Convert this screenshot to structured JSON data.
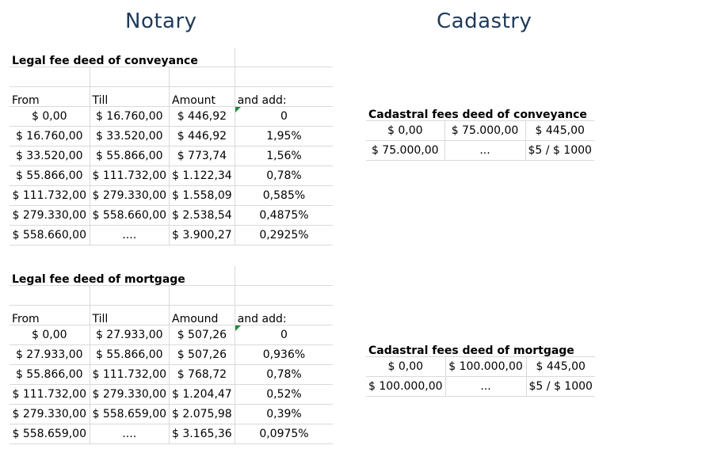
{
  "headings": {
    "notary": "Notary",
    "cadastry": "Cadastry"
  },
  "notary": {
    "conveyance": {
      "title": "Legal fee deed of conveyance",
      "headers": [
        "From",
        "Till",
        "Amount",
        "and add:"
      ],
      "rows": [
        [
          "$ 0,00",
          "$ 16.760,00",
          "$ 446,92",
          "0"
        ],
        [
          "$ 16.760,00",
          "$ 33.520,00",
          "$ 446,92",
          "1,95%"
        ],
        [
          "$ 33.520,00",
          "$ 55.866,00",
          "$ 773,74",
          "1,56%"
        ],
        [
          "$ 55.866,00",
          "$ 111.732,00",
          "$ 1.122,34",
          "0,78%"
        ],
        [
          "$ 111.732,00",
          "$ 279.330,00",
          "$ 1.558,09",
          "0,585%"
        ],
        [
          "$ 279.330,00",
          "$ 558.660,00",
          "$ 2.538,54",
          "0,4875%"
        ],
        [
          "$ 558.660,00",
          "....",
          "$ 3.900,27",
          "0,2925%"
        ]
      ]
    },
    "mortgage": {
      "title": "Legal fee deed of mortgage",
      "headers": [
        "From",
        "Till",
        "Amound",
        "and add:"
      ],
      "rows": [
        [
          "$ 0,00",
          "$ 27.933,00",
          "$ 507,26",
          "0"
        ],
        [
          "$ 27.933,00",
          "$ 55.866,00",
          "$ 507,26",
          "0,936%"
        ],
        [
          "$ 55.866,00",
          "$ 111.732,00",
          "$ 768,72",
          "0,78%"
        ],
        [
          "$ 111.732,00",
          "$ 279.330,00",
          "$ 1.204,47",
          "0,52%"
        ],
        [
          "$ 279.330,00",
          "$ 558.659,00",
          "$ 2.075,98",
          "0,39%"
        ],
        [
          "$ 558.659,00",
          "....",
          "$ 3.165,36",
          "0,0975%"
        ]
      ]
    }
  },
  "cadastry": {
    "conveyance": {
      "title": "Cadastral fees deed of conveyance",
      "rows": [
        [
          "$ 0,00",
          "$ 75.000,00",
          "$ 445,00"
        ],
        [
          "$ 75.000,00",
          "...",
          "$5 / $ 1000"
        ]
      ]
    },
    "mortgage": {
      "title": "Cadastral fees deed of mortgage",
      "rows": [
        [
          "$ 0,00",
          "$ 100.000,00",
          "$ 445,00"
        ],
        [
          "$ 100.000,00",
          "...",
          "$5 / $ 1000"
        ]
      ]
    }
  }
}
